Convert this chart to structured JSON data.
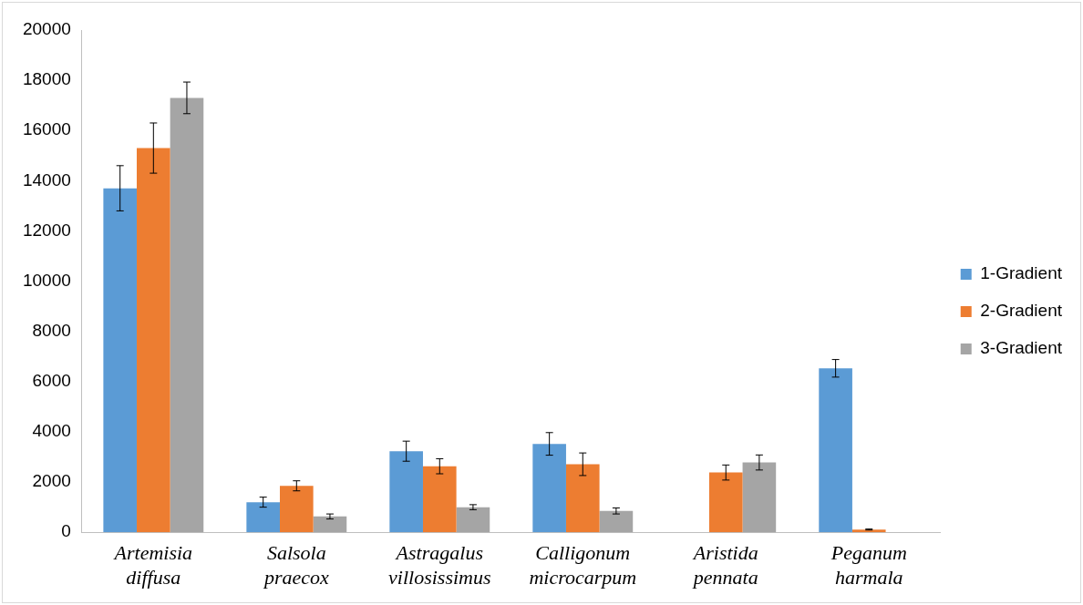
{
  "chart_data": {
    "type": "bar",
    "categories": [
      "Artemisia diffusa",
      "Salsola praecox",
      "Astragalus villosissimus",
      "Calligonum microcarpum",
      "Aristida pennata",
      "Peganum harmala"
    ],
    "series": [
      {
        "name": "1-Gradient",
        "color": "#5b9bd5",
        "values": [
          13700,
          1200,
          3230,
          3520,
          0,
          6530
        ],
        "errors": [
          900,
          200,
          400,
          450,
          null,
          350
        ]
      },
      {
        "name": "2-Gradient",
        "color": "#ed7d31",
        "values": [
          15300,
          1850,
          2630,
          2710,
          2380,
          110
        ],
        "errors": [
          1000,
          200,
          300,
          450,
          300,
          20
        ]
      },
      {
        "name": "3-Gradient",
        "color": "#a5a5a5",
        "values": [
          17300,
          630,
          1000,
          850,
          2780,
          10
        ],
        "errors": [
          630,
          100,
          100,
          120,
          300,
          null
        ]
      }
    ],
    "ylim": [
      0,
      20000
    ],
    "yticks": [
      0,
      2000,
      4000,
      6000,
      8000,
      10000,
      12000,
      14000,
      16000,
      18000,
      20000
    ],
    "grid": false,
    "legend": "right"
  }
}
